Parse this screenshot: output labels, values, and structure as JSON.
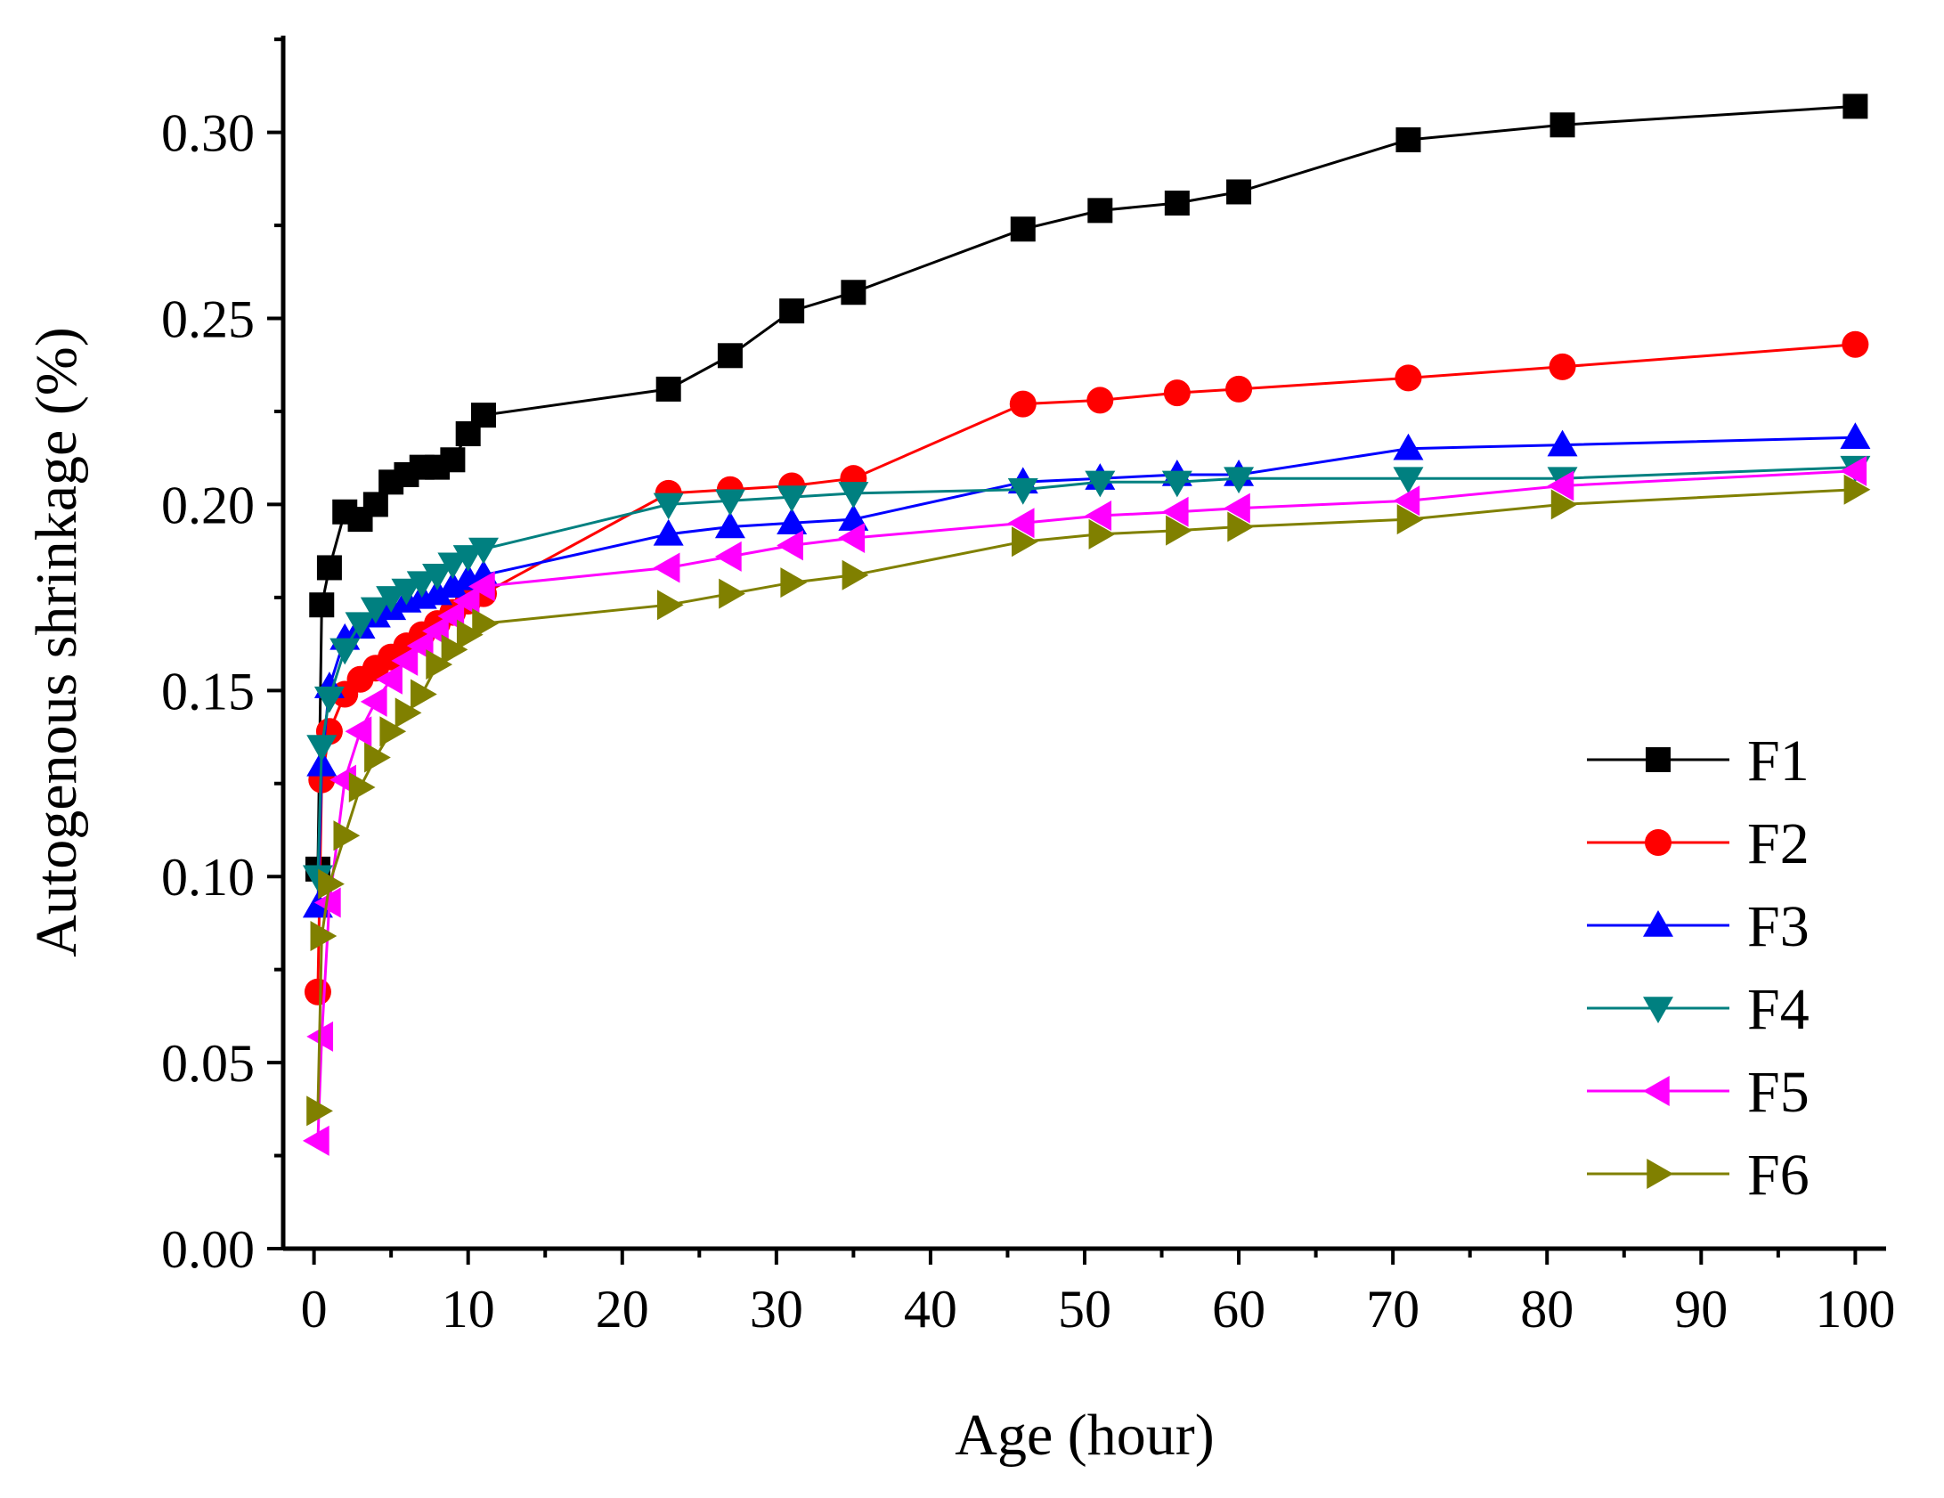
{
  "chart_data": {
    "type": "line",
    "title": "",
    "xlabel": "Age (hour)",
    "ylabel": "Autogenous shrinkage (%)",
    "xlim": [
      -2,
      102
    ],
    "ylim": [
      0,
      0.326
    ],
    "xticks": [
      0,
      10,
      20,
      30,
      40,
      50,
      60,
      70,
      80,
      90,
      100
    ],
    "xtick_labels": [
      "0",
      "10",
      "20",
      "30",
      "40",
      "50",
      "60",
      "70",
      "80",
      "90",
      "100"
    ],
    "yticks": [
      0,
      0.05,
      0.1,
      0.15,
      0.2,
      0.25,
      0.3
    ],
    "ytick_labels": [
      "0.00",
      "0.05",
      "0.10",
      "0.15",
      "0.20",
      "0.25",
      "0.30"
    ],
    "grid": false,
    "legend_position": "bottom-right",
    "series": [
      {
        "name": "F1",
        "color": "#000000",
        "marker": "square",
        "x": [
          0.25,
          0.5,
          1,
          2,
          3,
          4,
          5,
          6,
          7,
          8,
          9,
          10,
          11,
          23,
          27,
          31,
          35,
          46,
          51,
          56,
          60,
          71,
          81,
          100
        ],
        "y": [
          0.102,
          0.173,
          0.183,
          0.198,
          0.196,
          0.2,
          0.206,
          0.208,
          0.21,
          0.21,
          0.212,
          0.219,
          0.224,
          0.231,
          0.24,
          0.252,
          0.257,
          0.274,
          0.279,
          0.281,
          0.284,
          0.298,
          0.302,
          0.307
        ]
      },
      {
        "name": "F2",
        "color": "#ff0000",
        "marker": "circle",
        "x": [
          0.25,
          0.5,
          1,
          2,
          3,
          4,
          5,
          6,
          7,
          8,
          9,
          10,
          11,
          23,
          27,
          31,
          35,
          46,
          51,
          56,
          60,
          71,
          81,
          100
        ],
        "y": [
          0.069,
          0.126,
          0.139,
          0.149,
          0.153,
          0.156,
          0.159,
          0.162,
          0.165,
          0.168,
          0.171,
          0.174,
          0.176,
          0.203,
          0.204,
          0.205,
          0.207,
          0.227,
          0.228,
          0.23,
          0.231,
          0.234,
          0.237,
          0.243
        ]
      },
      {
        "name": "F3",
        "color": "#0000ff",
        "marker": "triangle-up",
        "x": [
          0.25,
          0.5,
          1,
          2,
          3,
          4,
          5,
          6,
          7,
          8,
          9,
          10,
          11,
          23,
          27,
          31,
          35,
          46,
          51,
          56,
          60,
          71,
          81,
          100
        ],
        "y": [
          0.092,
          0.13,
          0.151,
          0.164,
          0.167,
          0.17,
          0.172,
          0.174,
          0.175,
          0.176,
          0.178,
          0.18,
          0.181,
          0.192,
          0.194,
          0.195,
          0.196,
          0.206,
          0.207,
          0.208,
          0.208,
          0.215,
          0.216,
          0.218
        ]
      },
      {
        "name": "F4",
        "color": "#008080",
        "marker": "triangle-down",
        "x": [
          0.25,
          0.5,
          1,
          2,
          3,
          4,
          5,
          6,
          7,
          8,
          9,
          10,
          11,
          23,
          27,
          31,
          35,
          46,
          51,
          56,
          60,
          71,
          81,
          100
        ],
        "y": [
          0.1,
          0.135,
          0.148,
          0.161,
          0.168,
          0.172,
          0.175,
          0.177,
          0.179,
          0.181,
          0.184,
          0.186,
          0.188,
          0.2,
          0.201,
          0.202,
          0.203,
          0.204,
          0.206,
          0.206,
          0.207,
          0.207,
          0.207,
          0.21
        ]
      },
      {
        "name": "F5",
        "color": "#ff00ff",
        "marker": "triangle-left",
        "x": [
          0.25,
          0.5,
          1,
          2,
          3,
          4,
          5,
          6,
          7,
          8,
          9,
          10,
          11,
          23,
          27,
          31,
          35,
          46,
          51,
          56,
          60,
          71,
          81,
          100
        ],
        "y": [
          0.029,
          0.057,
          0.093,
          0.126,
          0.139,
          0.147,
          0.153,
          0.158,
          0.162,
          0.166,
          0.17,
          0.174,
          0.178,
          0.183,
          0.186,
          0.189,
          0.191,
          0.195,
          0.197,
          0.198,
          0.199,
          0.201,
          0.205,
          0.209
        ]
      },
      {
        "name": "F6",
        "color": "#808000",
        "marker": "triangle-right",
        "x": [
          0.25,
          0.5,
          1,
          2,
          3,
          4,
          5,
          6,
          7,
          8,
          9,
          10,
          11,
          23,
          27,
          31,
          35,
          46,
          51,
          56,
          60,
          71,
          81,
          100
        ],
        "y": [
          0.037,
          0.084,
          0.098,
          0.111,
          0.124,
          0.132,
          0.139,
          0.144,
          0.149,
          0.157,
          0.161,
          0.165,
          0.168,
          0.173,
          0.176,
          0.179,
          0.181,
          0.19,
          0.192,
          0.193,
          0.194,
          0.196,
          0.2,
          0.204
        ]
      }
    ]
  }
}
